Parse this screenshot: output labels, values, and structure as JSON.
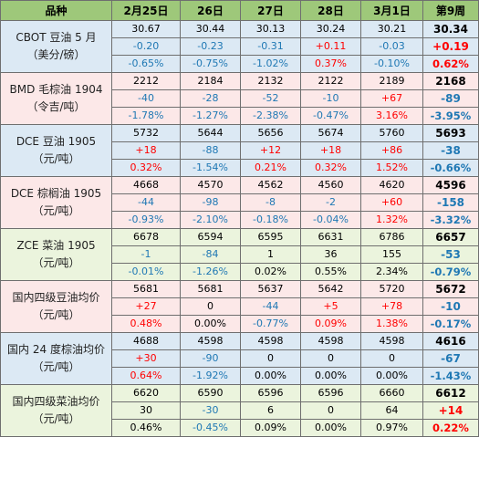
{
  "header": [
    "品种",
    "2月25日",
    "26日",
    "27日",
    "28日",
    "3月1日",
    "第9周"
  ],
  "colors": {
    "header_bg": "#9ec87a",
    "positive": "#ff0000",
    "negative": "#1f78b4",
    "neutral": "#000000",
    "stripe_green": "#ebf4dd",
    "stripe_pink": "#fce8e8",
    "stripe_blue": "#dce9f4"
  },
  "products": [
    {
      "label": [
        "CBOT 豆油 5 月",
        "（美分/磅）"
      ],
      "bg": "#dce9f4",
      "price": [
        "30.67",
        "30.44",
        "30.13",
        "30.24",
        "30.21",
        "30.34"
      ],
      "change": [
        "-0.20",
        "-0.23",
        "-0.31",
        "+0.11",
        "-0.03",
        "+0.19"
      ],
      "pct": [
        "-0.65%",
        "-0.75%",
        "-1.02%",
        "0.37%",
        "-0.10%",
        "0.62%"
      ]
    },
    {
      "label": [
        "BMD 毛棕油 1904",
        "（令吉/吨）"
      ],
      "bg": "#fce8e8",
      "price": [
        "2212",
        "2184",
        "2132",
        "2122",
        "2189",
        "2168"
      ],
      "change": [
        "-40",
        "-28",
        "-52",
        "-10",
        "+67",
        "-89"
      ],
      "pct": [
        "-1.78%",
        "-1.27%",
        "-2.38%",
        "-0.47%",
        "3.16%",
        "-3.95%"
      ]
    },
    {
      "label": [
        "DCE 豆油 1905",
        "（元/吨）"
      ],
      "bg": "#dce9f4",
      "price": [
        "5732",
        "5644",
        "5656",
        "5674",
        "5760",
        "5693"
      ],
      "change": [
        "+18",
        "-88",
        "+12",
        "+18",
        "+86",
        "-38"
      ],
      "pct": [
        "0.32%",
        "-1.54%",
        "0.21%",
        "0.32%",
        "1.52%",
        "-0.66%"
      ]
    },
    {
      "label": [
        "DCE 棕榈油 1905",
        "（元/吨）"
      ],
      "bg": "#fce8e8",
      "price": [
        "4668",
        "4570",
        "4562",
        "4560",
        "4620",
        "4596"
      ],
      "change": [
        "-44",
        "-98",
        "-8",
        "-2",
        "+60",
        "-158"
      ],
      "pct": [
        "-0.93%",
        "-2.10%",
        "-0.18%",
        "-0.04%",
        "1.32%",
        "-3.32%"
      ]
    },
    {
      "label": [
        "ZCE 菜油 1905",
        "（元/吨）"
      ],
      "bg": "#ebf4dd",
      "price": [
        "6678",
        "6594",
        "6595",
        "6631",
        "6786",
        "6657"
      ],
      "change": [
        "-1",
        "-84",
        "1",
        "36",
        "155",
        "-53"
      ],
      "pct": [
        "-0.01%",
        "-1.26%",
        "0.02%",
        "0.55%",
        "2.34%",
        "-0.79%"
      ]
    },
    {
      "label": [
        "国内四级豆油均价",
        "（元/吨）"
      ],
      "bg": "#fce8e8",
      "price": [
        "5681",
        "5681",
        "5637",
        "5642",
        "5720",
        "5672"
      ],
      "change": [
        "+27",
        "0",
        "-44",
        "+5",
        "+78",
        "-10"
      ],
      "pct": [
        "0.48%",
        "0.00%",
        "-0.77%",
        "0.09%",
        "1.38%",
        "-0.17%"
      ]
    },
    {
      "label": [
        "国内 24 度棕油均价",
        "（元/吨）"
      ],
      "bg": "#dce9f4",
      "price": [
        "4688",
        "4598",
        "4598",
        "4598",
        "4598",
        "4616"
      ],
      "change": [
        "+30",
        "-90",
        "0",
        "0",
        "0",
        "-67"
      ],
      "pct": [
        "0.64%",
        "-1.92%",
        "0.00%",
        "0.00%",
        "0.00%",
        "-1.43%"
      ]
    },
    {
      "label": [
        "国内四级菜油均价",
        "（元/吨）"
      ],
      "bg": "#ebf4dd",
      "price": [
        "6620",
        "6590",
        "6596",
        "6596",
        "6660",
        "6612"
      ],
      "change": [
        "30",
        "-30",
        "6",
        "0",
        "64",
        "+14"
      ],
      "pct": [
        "0.46%",
        "-0.45%",
        "0.09%",
        "0.00%",
        "0.97%",
        "0.22%"
      ]
    }
  ]
}
